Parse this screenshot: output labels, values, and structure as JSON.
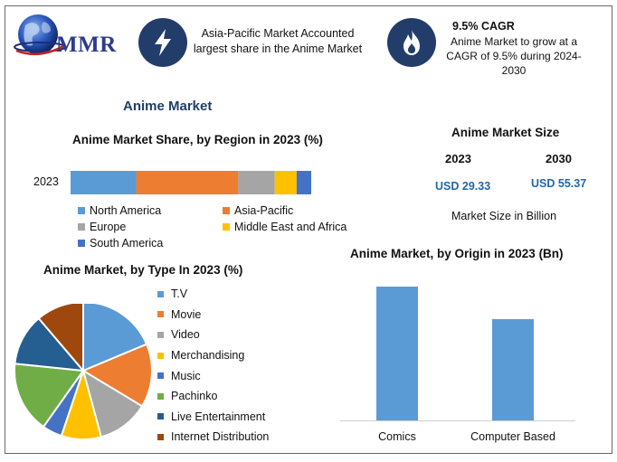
{
  "header": {
    "logo_text": "MMR",
    "region_note": "Asia-Pacific Market Accounted largest share in the Anime Market",
    "cagr_title": "9.5% CAGR",
    "cagr_note": "Anime Market to grow at a CAGR of 9.5% during 2024-2030",
    "icons": [
      "globe-icon",
      "lightning-bolt-icon",
      "flame-icon"
    ]
  },
  "main_title": "Anime Market",
  "market_size": {
    "title": "Anime Market Size",
    "year_a": "2023",
    "year_b": "2030",
    "value_a": "USD 29.33",
    "value_b": "USD 55.37",
    "note": "Market Size in Billion"
  },
  "chart_data": [
    {
      "type": "bar",
      "orientation": "horizontal-stacked",
      "title": "Anime Market Share, by Region in 2023 (%)",
      "categories": [
        "2023"
      ],
      "series": [
        {
          "name": "North America",
          "values": [
            27
          ],
          "color": "#5b9bd5"
        },
        {
          "name": "Asia-Pacific",
          "values": [
            42
          ],
          "color": "#ed7d31"
        },
        {
          "name": "Europe",
          "values": [
            15
          ],
          "color": "#a5a5a5"
        },
        {
          "name": "Middle East and Africa",
          "values": [
            9
          ],
          "color": "#ffc000"
        },
        {
          "name": "South America",
          "values": [
            6
          ],
          "color": "#4472c4"
        }
      ],
      "legend": "bottom"
    },
    {
      "type": "pie",
      "title": "Anime Market, by Type In 2023 (%)",
      "labels": [
        "T.V",
        "Movie",
        "Video",
        "Merchandising",
        "Music",
        "Pachinko",
        "Live Entertainment",
        "Internet Distribution"
      ],
      "values": [
        20,
        16,
        13,
        10,
        5,
        18,
        13,
        12
      ],
      "colors": [
        "#5b9bd5",
        "#ed7d31",
        "#a5a5a5",
        "#ffc000",
        "#4472c4",
        "#70ad47",
        "#255e91",
        "#9e480e"
      ],
      "legend": "right"
    },
    {
      "type": "bar",
      "title": "Anime Market, by Origin in 2023 (Bn)",
      "categories": [
        "Comics",
        "Computer Based"
      ],
      "values": [
        18.5,
        14.0
      ],
      "ylim": [
        0,
        20
      ],
      "color": "#5b9bd5",
      "grid": false
    }
  ]
}
